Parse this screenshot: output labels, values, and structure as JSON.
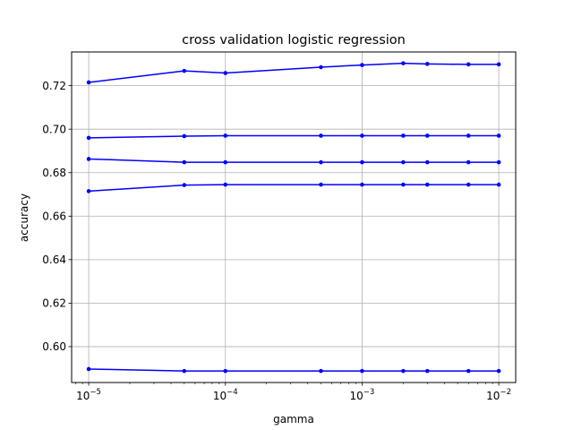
{
  "chart_data": {
    "type": "line",
    "title": "cross validation logistic regression",
    "xlabel": "gamma",
    "ylabel": "accuracy",
    "xscale": "log",
    "xlim": [
      7.5e-06,
      0.0133
    ],
    "ylim": [
      0.5835,
      0.7355
    ],
    "x": [
      1e-05,
      5e-05,
      0.0001,
      0.0005,
      0.001,
      0.002,
      0.003,
      0.006,
      0.01
    ],
    "x_ticks": [
      {
        "value": 1e-05,
        "base": "10",
        "exp": "−5"
      },
      {
        "value": 0.0001,
        "base": "10",
        "exp": "−4"
      },
      {
        "value": 0.001,
        "base": "10",
        "exp": "−3"
      },
      {
        "value": 0.01,
        "base": "10",
        "exp": "−2"
      }
    ],
    "y_ticks": [
      {
        "value": 0.6,
        "label": "0.60"
      },
      {
        "value": 0.62,
        "label": "0.62"
      },
      {
        "value": 0.64,
        "label": "0.64"
      },
      {
        "value": 0.66,
        "label": "0.66"
      },
      {
        "value": 0.68,
        "label": "0.68"
      },
      {
        "value": 0.7,
        "label": "0.70"
      },
      {
        "value": 0.72,
        "label": "0.72"
      }
    ],
    "grid": true,
    "line_color": "#0000ff",
    "series": [
      {
        "values": [
          0.7215,
          0.7268,
          0.7258,
          0.7285,
          0.7295,
          0.7303,
          0.73,
          0.7298,
          0.7298
        ]
      },
      {
        "values": [
          0.696,
          0.6968,
          0.697,
          0.697,
          0.697,
          0.697,
          0.697,
          0.697,
          0.697
        ]
      },
      {
        "values": [
          0.6863,
          0.6848,
          0.6848,
          0.6848,
          0.6848,
          0.6848,
          0.6848,
          0.6848,
          0.6848
        ]
      },
      {
        "values": [
          0.6715,
          0.6743,
          0.6745,
          0.6745,
          0.6745,
          0.6745,
          0.6745,
          0.6745,
          0.6745
        ]
      },
      {
        "values": [
          0.5897,
          0.5888,
          0.5888,
          0.5888,
          0.5888,
          0.5888,
          0.5888,
          0.5888,
          0.5888
        ]
      }
    ]
  }
}
